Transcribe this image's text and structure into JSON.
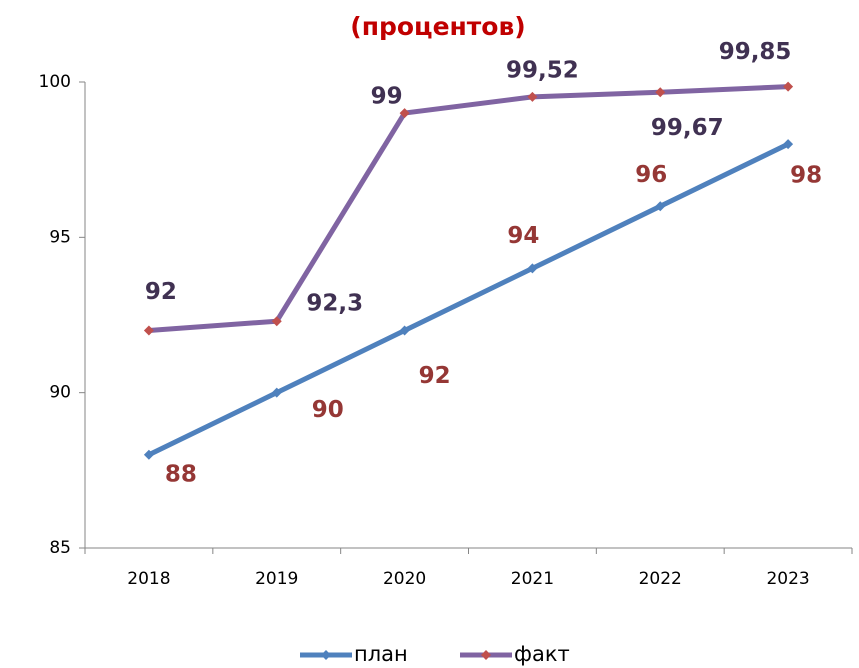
{
  "chart_data": {
    "type": "line",
    "title": "(процентов)",
    "categories": [
      "2018",
      "2019",
      "2020",
      "2021",
      "2022",
      "2023"
    ],
    "series": [
      {
        "name": "план",
        "color": "#4f81bd",
        "marker_color": "#4f81bd",
        "label_color": "#953735",
        "values": [
          88,
          90,
          92,
          94,
          96,
          98
        ]
      },
      {
        "name": "факт",
        "color": "#8064a2",
        "marker_color": "#c0504d",
        "label_color": "#403152",
        "values": [
          92,
          92.3,
          99,
          99.52,
          99.67,
          99.85
        ],
        "value_labels": [
          "92",
          "92,3",
          "99",
          "99,52",
          "99,67",
          "99,85"
        ]
      }
    ],
    "ylim": [
      85,
      100
    ],
    "yticks": [
      85,
      90,
      95,
      100
    ],
    "legend": "bottom"
  }
}
